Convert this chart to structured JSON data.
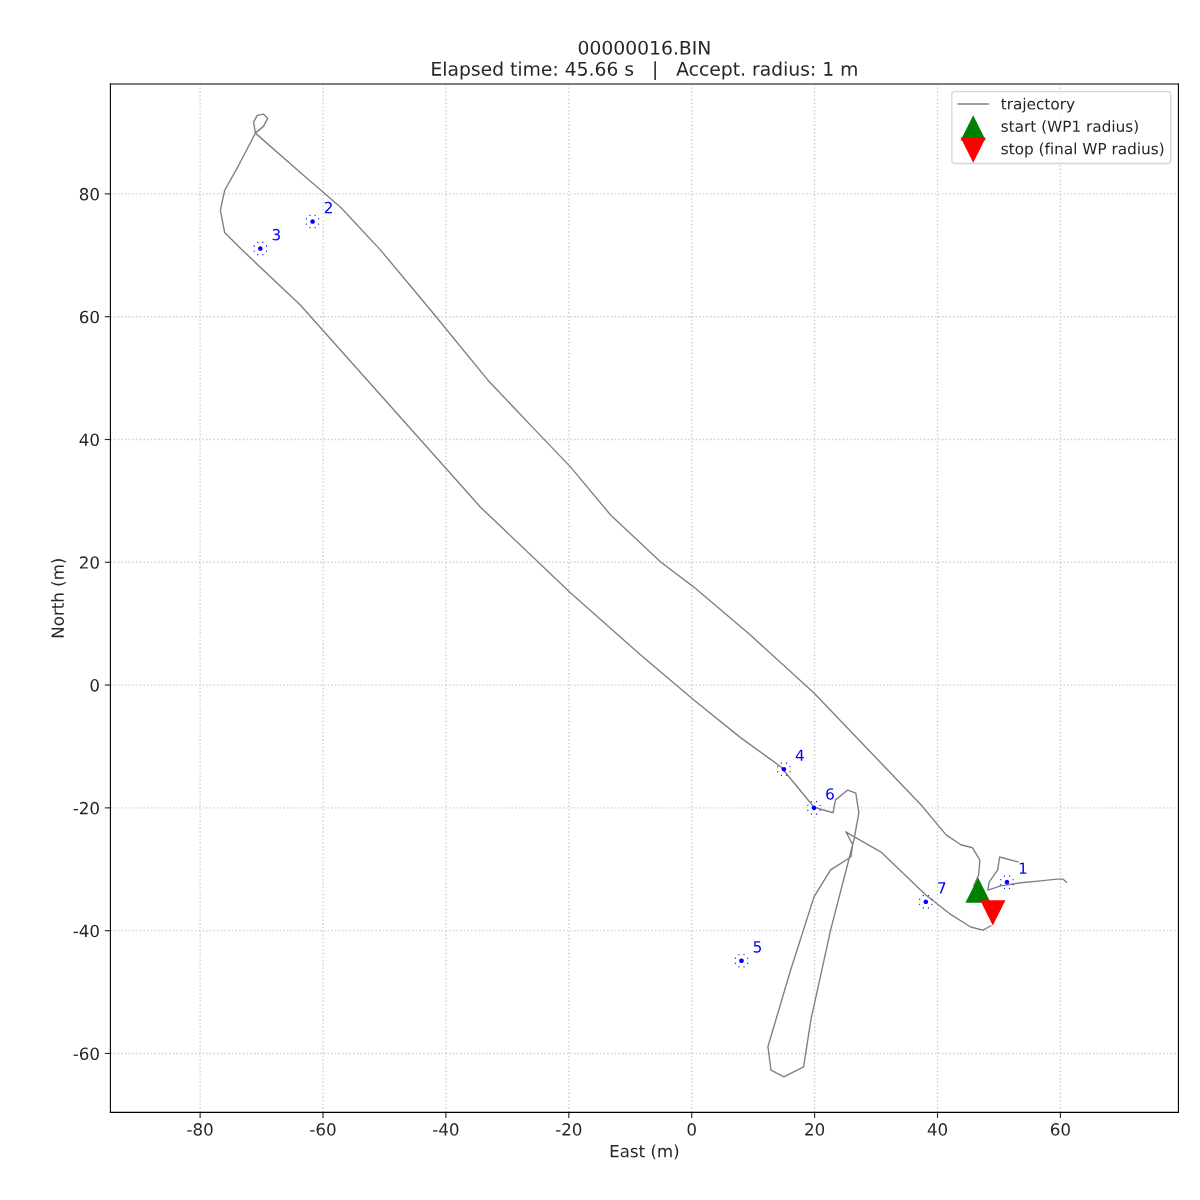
{
  "chart_data": {
    "type": "scatter",
    "title": "00000016.BIN",
    "subtitle": "Elapsed time: 45.66 s   |   Accept. radius: 1 m",
    "xlabel": "East (m)",
    "ylabel": "North (m)",
    "xlim": [
      -94.6,
      79.2
    ],
    "ylim": [
      -69.6,
      97.9
    ],
    "xticks": [
      -80,
      -60,
      -40,
      -20,
      0,
      20,
      40,
      60
    ],
    "yticks": [
      -60,
      -40,
      -20,
      0,
      20,
      40,
      60,
      80
    ],
    "grid": true,
    "legend": "top right",
    "series": [
      {
        "name": "trajectory",
        "type": "line",
        "color": "#808080",
        "marker": "none",
        "x": [
          53.1,
          50.1,
          49.8,
          48.4,
          48.2,
          50.3,
          53.6,
          56.8,
          59.4,
          60.4,
          61.0,
          null,
          45.9,
          46.7,
          46.9,
          45.7,
          43.8,
          41.4,
          37.3,
          30.8,
          19.9,
          9.6,
          0.3,
          -5.0,
          -13.2,
          -19.7,
          -26.2,
          -33.2,
          -42.5,
          -50.6,
          -57.1,
          -63.7,
          -71.0,
          -71.3,
          -70.7,
          -69.7,
          -69.0,
          -69.7,
          -71.0,
          -73.7,
          -76.0,
          -76.7,
          -76.0,
          -73.4,
          -63.7,
          -50.6,
          -34.4,
          -19.7,
          -8.3,
          0.3,
          8.0,
          14.5,
          19.9,
          23.0,
          23.4,
          25.4,
          26.7,
          27.2,
          26.4,
          22.6,
          19.4,
          18.2,
          15.0,
          12.9,
          12.4,
          16.1,
          19.9,
          22.6,
          25.9,
          26.2,
          25.1,
          25.9,
          30.8,
          38.1,
          42.2,
          45.4,
          47.4,
          48.7
        ],
        "values": [
          -28.8,
          -28.0,
          -30.1,
          -32.1,
          -33.4,
          -32.7,
          -32.2,
          -31.9,
          -31.6,
          -31.6,
          -32.1,
          null,
          -32.7,
          -30.9,
          -28.5,
          -26.5,
          -26.0,
          -24.4,
          -19.5,
          -12.7,
          -1.3,
          8.1,
          16.0,
          20.0,
          27.7,
          35.5,
          42.3,
          49.7,
          61.1,
          70.8,
          77.8,
          83.5,
          89.9,
          91.7,
          92.8,
          93.0,
          92.3,
          91.0,
          89.9,
          84.7,
          80.6,
          77.3,
          73.7,
          71.1,
          61.9,
          47.2,
          29.0,
          15.0,
          4.9,
          -2.4,
          -8.6,
          -13.3,
          -19.9,
          -20.8,
          -18.7,
          -17.1,
          -17.6,
          -20.8,
          -25.2,
          -39.9,
          -54.5,
          -62.2,
          -63.8,
          -62.7,
          -58.9,
          -46.4,
          -34.5,
          -30.1,
          -28.0,
          -26.0,
          -23.9,
          -24.4,
          -27.2,
          -34.2,
          -37.4,
          -39.4,
          -39.9,
          -39.2
        ]
      },
      {
        "color": "#0000ff",
        "marker": "circle",
        "x": [
          51.3,
          -61.7,
          -70.2,
          15.0,
          8.1,
          19.9,
          38.1
        ],
        "values": [
          -32.1,
          75.5,
          71.1,
          -13.7,
          -44.9,
          -20.0,
          -35.3
        ]
      },
      {
        "name": "start (WP1 radius)",
        "type": "scatter",
        "color": "#008000",
        "marker": "triangle",
        "x": [
          46.6
        ],
        "values": [
          -33.4
        ]
      },
      {
        "name": "stop (final WP radius)",
        "type": "scatter",
        "color": "#ff0000",
        "marker": "triangle_down",
        "x": [
          49.0
        ],
        "values": [
          -37.1
        ]
      }
    ],
    "annotations": [
      {
        "text": "1",
        "x": 51.3,
        "y": -32.1
      },
      {
        "text": "2",
        "x": -61.7,
        "y": 75.5
      },
      {
        "text": "3",
        "x": -70.2,
        "y": 71.1
      },
      {
        "text": "4",
        "x": 15.0,
        "y": -13.7
      },
      {
        "text": "5",
        "x": 8.1,
        "y": -44.9
      },
      {
        "text": "6",
        "x": 19.9,
        "y": -20.0
      },
      {
        "text": "7",
        "x": 38.1,
        "y": -35.3
      }
    ]
  }
}
